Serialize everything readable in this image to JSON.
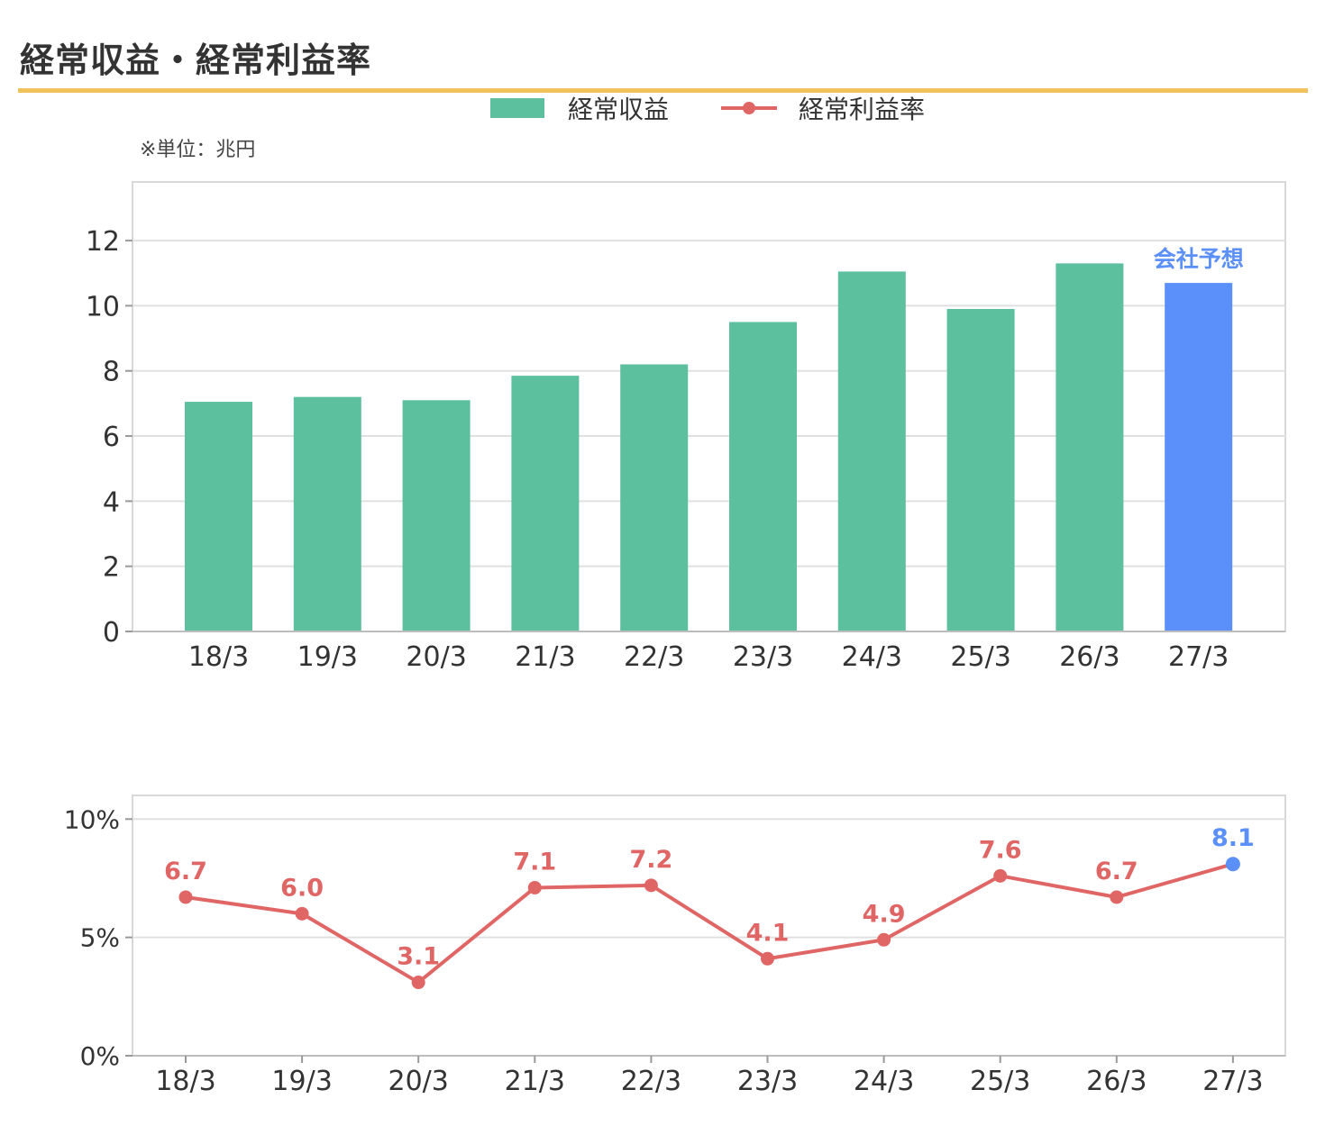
{
  "title": "経常収益・経常利益率",
  "unit_note": "※単位：兆円",
  "legend": {
    "bar_label": "経常収益",
    "line_label": "経常利益率"
  },
  "colors": {
    "bar": "#5cbf9e",
    "forecast": "#5b8ff9",
    "line": "#e06666",
    "accent_rule": "#f2c25c",
    "grid": "#e0e0e0",
    "frame": "#d8d8d8",
    "tick_text": "#333333"
  },
  "chart_data": [
    {
      "type": "bar",
      "categories": [
        "18/3",
        "19/3",
        "20/3",
        "21/3",
        "22/3",
        "23/3",
        "24/3",
        "25/3",
        "26/3",
        "27/3"
      ],
      "series": [
        {
          "name": "経常収益",
          "values": [
            7.05,
            7.2,
            7.1,
            7.85,
            8.2,
            9.5,
            11.05,
            9.9,
            11.3,
            10.7
          ]
        }
      ],
      "forecast_index": 9,
      "forecast_label": "会社予想",
      "ylim": [
        0,
        13.8
      ],
      "yticks": [
        0,
        2,
        4,
        6,
        8,
        10,
        12
      ],
      "grid": true
    },
    {
      "type": "line",
      "categories": [
        "18/3",
        "19/3",
        "20/3",
        "21/3",
        "22/3",
        "23/3",
        "24/3",
        "25/3",
        "26/3",
        "27/3"
      ],
      "series": [
        {
          "name": "経常利益率",
          "values": [
            6.7,
            6.0,
            3.1,
            7.1,
            7.2,
            4.1,
            4.9,
            7.6,
            6.7,
            8.1
          ]
        }
      ],
      "data_labels": [
        "6.7",
        "6.0",
        "3.1",
        "7.1",
        "7.2",
        "4.1",
        "4.9",
        "7.6",
        "6.7",
        "8.1"
      ],
      "forecast_index": 9,
      "ylim": [
        0,
        11
      ],
      "yticks": [
        0,
        5,
        10
      ],
      "ytick_labels": [
        "0%",
        "5%",
        "10%"
      ],
      "grid": true
    }
  ]
}
